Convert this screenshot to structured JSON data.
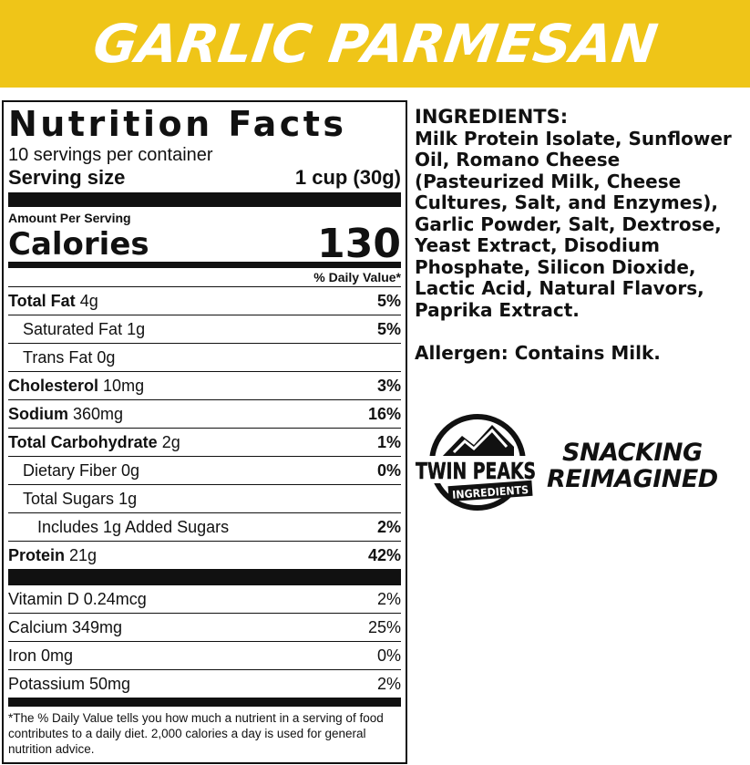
{
  "banner": {
    "title": "GARLIC PARMESAN",
    "color": "#EFC518"
  },
  "nutrition": {
    "title": "Nutrition Facts",
    "servings": "10 servings per container",
    "serving_size_label": "Serving size",
    "serving_size_value": "1 cup (30g)",
    "amount_per_serving": "Amount Per Serving",
    "calories_label": "Calories",
    "calories_value": "130",
    "dv_header": "% Daily Value*",
    "rows": [
      {
        "name": "Total Fat",
        "amount": "4g",
        "dv": "5%"
      },
      {
        "name": "Saturated Fat",
        "amount": "1g",
        "dv": "5%"
      },
      {
        "name": "Trans Fat",
        "amount": "0g",
        "dv": ""
      },
      {
        "name": "Cholesterol",
        "amount": "10mg",
        "dv": "3%"
      },
      {
        "name": "Sodium",
        "amount": "360mg",
        "dv": "16%"
      },
      {
        "name": "Total Carbohydrate",
        "amount": "2g",
        "dv": "1%"
      },
      {
        "name": "Dietary Fiber",
        "amount": "0g",
        "dv": "0%"
      },
      {
        "name": "Total Sugars",
        "amount": "1g",
        "dv": ""
      },
      {
        "name": "Includes 1g Added Sugars",
        "amount": "",
        "dv": "2%"
      },
      {
        "name": "Protein",
        "amount": "21g",
        "dv": "42%"
      }
    ],
    "vitamins": [
      {
        "label": "Vitamin D 0.24mcg",
        "dv": "2%"
      },
      {
        "label": "Calcium 349mg",
        "dv": "25%"
      },
      {
        "label": "Iron 0mg",
        "dv": "0%"
      },
      {
        "label": "Potassium 50mg",
        "dv": "2%"
      }
    ],
    "footnote": "*The % Daily Value tells you how much a nutrient in a serving of food contributes to a daily diet. 2,000 calories a day is used for general nutrition advice."
  },
  "ingredients": {
    "heading": "INGREDIENTS:",
    "text": "Milk Protein Isolate, Sunflower Oil, Romano Cheese (Pasteurized Milk, Cheese Cultures, Salt, and Enzymes), Garlic Powder, Salt, Dextrose, Yeast Extract, Disodium Phosphate, Silicon Dioxide, Lactic Acid, Natural Flavors, Paprika Extract.",
    "allergen": "Allergen: Contains Milk."
  },
  "brand": {
    "logo_line1": "TWIN PEAKS",
    "logo_line2": "INGREDIENTS",
    "tagline_line1": "SNACKING",
    "tagline_line2": "REIMAGINED"
  }
}
